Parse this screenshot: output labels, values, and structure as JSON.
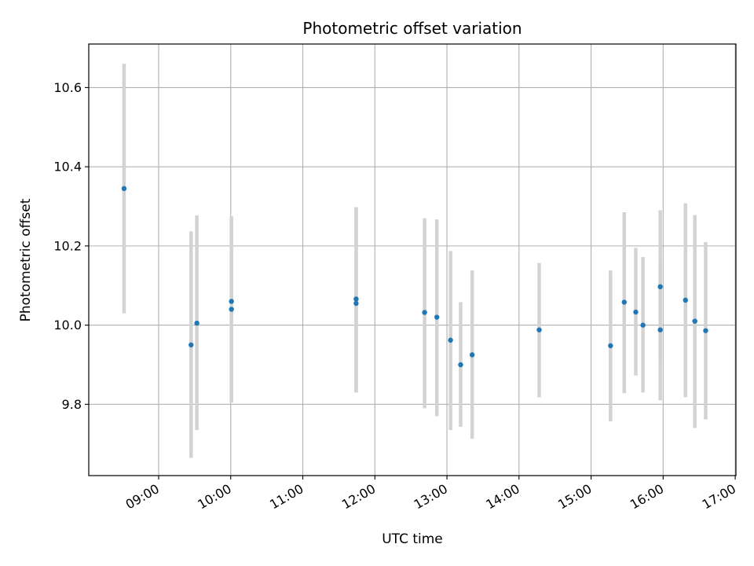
{
  "chart_data": {
    "type": "scatter",
    "title": "Photometric offset variation",
    "xlabel": "UTC time",
    "ylabel": "Photometric offset",
    "xlim": [
      8.03,
      17.01
    ],
    "ylim": [
      9.62,
      10.71
    ],
    "grid": true,
    "x_ticks": [
      {
        "value": 9,
        "label": "09:00"
      },
      {
        "value": 10,
        "label": "10:00"
      },
      {
        "value": 11,
        "label": "11:00"
      },
      {
        "value": 12,
        "label": "12:00"
      },
      {
        "value": 13,
        "label": "13:00"
      },
      {
        "value": 14,
        "label": "14:00"
      },
      {
        "value": 15,
        "label": "15:00"
      },
      {
        "value": 16,
        "label": "16:00"
      },
      {
        "value": 17,
        "label": "17:00"
      }
    ],
    "y_ticks": [
      {
        "value": 9.8,
        "label": "9.8"
      },
      {
        "value": 10.0,
        "label": "10.0"
      },
      {
        "value": 10.2,
        "label": "10.2"
      },
      {
        "value": 10.4,
        "label": "10.4"
      },
      {
        "value": 10.6,
        "label": "10.6"
      }
    ],
    "colors": {
      "point": "#1f77b4",
      "errorbar": "#d3d3d3",
      "grid": "#b0b0b0"
    },
    "points": [
      {
        "x": 8.52,
        "y": 10.345,
        "low": 10.03,
        "high": 10.66
      },
      {
        "x": 9.45,
        "y": 9.95,
        "low": 9.665,
        "high": 10.237
      },
      {
        "x": 9.53,
        "y": 10.005,
        "low": 9.735,
        "high": 10.277
      },
      {
        "x": 10.01,
        "y": 10.06,
        "low": 9.81,
        "high": 10.27
      },
      {
        "x": 10.01,
        "y": 10.04,
        "low": 9.805,
        "high": 10.275
      },
      {
        "x": 11.74,
        "y": 10.066,
        "low": 9.83,
        "high": 10.298
      },
      {
        "x": 11.74,
        "y": 10.055,
        "low": 9.83,
        "high": 10.298
      },
      {
        "x": 12.69,
        "y": 10.032,
        "low": 9.79,
        "high": 10.27
      },
      {
        "x": 12.86,
        "y": 10.02,
        "low": 9.77,
        "high": 10.267
      },
      {
        "x": 13.05,
        "y": 9.962,
        "low": 9.735,
        "high": 10.187
      },
      {
        "x": 13.19,
        "y": 9.9,
        "low": 9.743,
        "high": 10.058
      },
      {
        "x": 13.35,
        "y": 9.925,
        "low": 9.713,
        "high": 10.138
      },
      {
        "x": 14.28,
        "y": 9.988,
        "low": 9.818,
        "high": 10.157
      },
      {
        "x": 15.27,
        "y": 9.948,
        "low": 9.757,
        "high": 10.138
      },
      {
        "x": 15.46,
        "y": 10.058,
        "low": 9.828,
        "high": 10.285
      },
      {
        "x": 15.62,
        "y": 10.033,
        "low": 9.873,
        "high": 10.195
      },
      {
        "x": 15.72,
        "y": 10.0,
        "low": 9.83,
        "high": 10.172
      },
      {
        "x": 15.96,
        "y": 10.097,
        "low": 9.905,
        "high": 10.29
      },
      {
        "x": 15.96,
        "y": 9.988,
        "low": 9.81,
        "high": 10.165
      },
      {
        "x": 16.31,
        "y": 10.063,
        "low": 9.818,
        "high": 10.308
      },
      {
        "x": 16.44,
        "y": 10.01,
        "low": 9.74,
        "high": 10.278
      },
      {
        "x": 16.59,
        "y": 9.986,
        "low": 9.762,
        "high": 10.21
      }
    ]
  }
}
